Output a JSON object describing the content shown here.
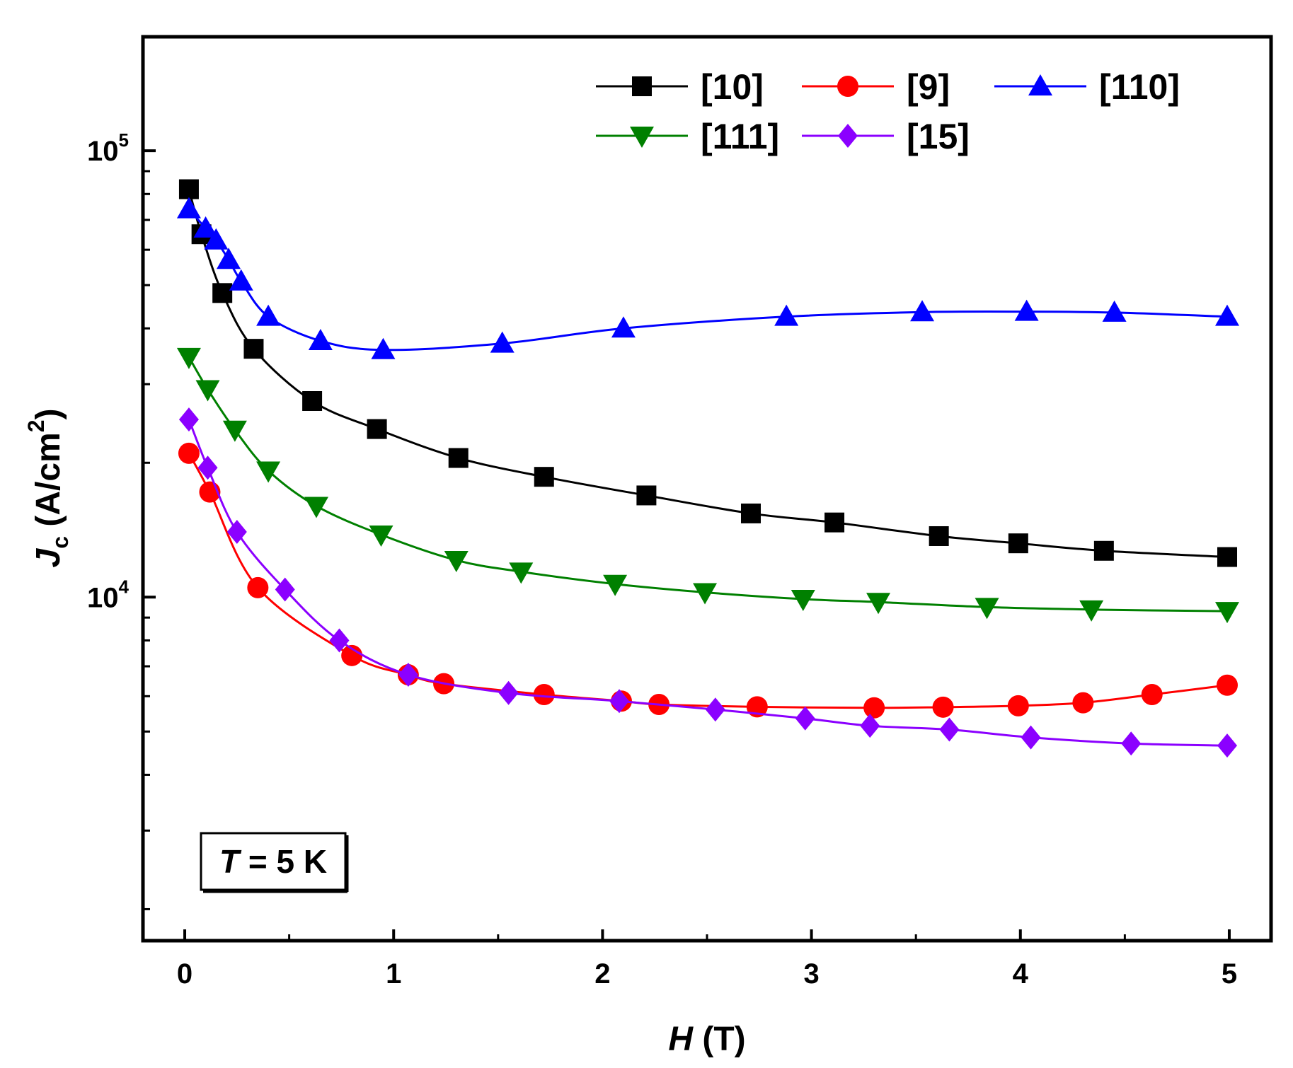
{
  "chart_data": {
    "type": "line",
    "xlabel": {
      "var": "H",
      "unit": " (T)"
    },
    "ylabel": {
      "var": "J",
      "sub": "c",
      "unit": " (A/cm",
      "sup": "2",
      "close": ")"
    },
    "xlim": [
      -0.2,
      5.2
    ],
    "ylim": [
      1700,
      180000
    ],
    "yscale": "log",
    "xticks": [
      0,
      1,
      2,
      3,
      4,
      5
    ],
    "xtick_labels": [
      "0",
      "1",
      "2",
      "3",
      "4",
      "5"
    ],
    "yticks_major": [
      {
        "value": 10000,
        "base": "10",
        "exp": "4"
      },
      {
        "value": 100000,
        "base": "10",
        "exp": "5"
      }
    ],
    "annotation": {
      "var": "T",
      "text": " = 5 K"
    },
    "legend_position": "top-right",
    "series": [
      {
        "name": "[10]",
        "color": "#000000",
        "marker": "square",
        "x": [
          0.02,
          0.08,
          0.18,
          0.33,
          0.61,
          0.92,
          1.31,
          1.72,
          2.21,
          2.71,
          3.11,
          3.61,
          3.99,
          4.4,
          4.99
        ],
        "y": [
          82000,
          65000,
          48000,
          36000,
          27500,
          23800,
          20500,
          18600,
          16900,
          15400,
          14700,
          13700,
          13200,
          12700,
          12300
        ]
      },
      {
        "name": "[9]",
        "color": "#ff0000",
        "marker": "circle",
        "x": [
          0.02,
          0.12,
          0.35,
          0.8,
          1.07,
          1.24,
          1.72,
          2.09,
          2.27,
          2.74,
          3.3,
          3.63,
          3.99,
          4.3,
          4.63,
          4.99
        ],
        "y": [
          21000,
          17200,
          10500,
          7400,
          6700,
          6400,
          6050,
          5850,
          5750,
          5680,
          5650,
          5670,
          5710,
          5800,
          6050,
          6350
        ]
      },
      {
        "name": "[110]",
        "color": "#0000ff",
        "marker": "triangle-up",
        "x": [
          0.02,
          0.1,
          0.15,
          0.21,
          0.27,
          0.4,
          0.65,
          0.95,
          1.52,
          2.1,
          2.88,
          3.53,
          4.03,
          4.45,
          4.99
        ],
        "y": [
          74000,
          67000,
          63000,
          57000,
          51000,
          42500,
          37500,
          35800,
          37000,
          40000,
          42500,
          43500,
          43600,
          43400,
          42500
        ]
      },
      {
        "name": "[111]",
        "color": "#008000",
        "marker": "triangle-down",
        "x": [
          0.02,
          0.11,
          0.24,
          0.4,
          0.63,
          0.94,
          1.3,
          1.61,
          2.06,
          2.49,
          2.96,
          3.32,
          3.84,
          4.34,
          4.99
        ],
        "y": [
          34500,
          29200,
          23700,
          19200,
          16000,
          13800,
          12100,
          11400,
          10700,
          10250,
          9900,
          9750,
          9500,
          9380,
          9300
        ]
      },
      {
        "name": "[15]",
        "color": "#8b00ff",
        "marker": "diamond",
        "x": [
          0.02,
          0.11,
          0.25,
          0.48,
          0.74,
          1.07,
          1.55,
          2.08,
          2.54,
          2.97,
          3.28,
          3.66,
          4.05,
          4.53,
          4.99
        ],
        "y": [
          25000,
          19500,
          14000,
          10400,
          8000,
          6700,
          6100,
          5850,
          5600,
          5350,
          5150,
          5050,
          4850,
          4700,
          4650
        ]
      }
    ]
  }
}
